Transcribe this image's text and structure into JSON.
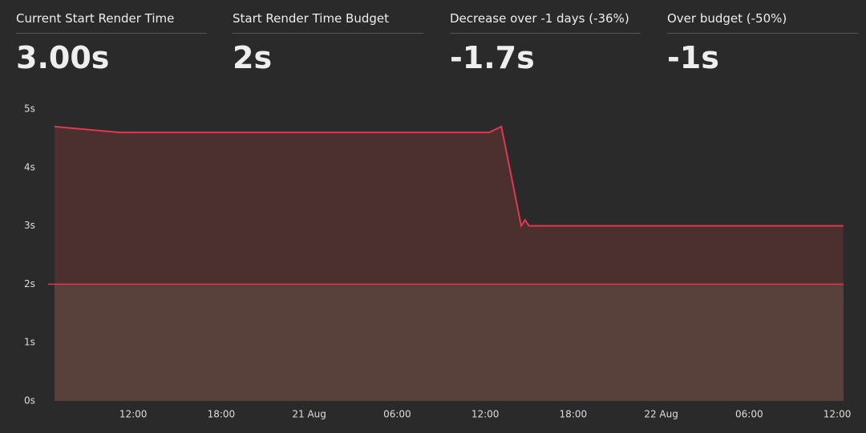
{
  "stats": [
    {
      "label": "Current Start Render Time",
      "value": "3.00s"
    },
    {
      "label": "Start Render Time Budget",
      "value": "2s"
    },
    {
      "label": "Decrease over -1 days (-36%)",
      "value": "-1.7s"
    },
    {
      "label": "Over budget (-50%)",
      "value": "-1s"
    }
  ],
  "chart_data": {
    "type": "area",
    "x": [
      "20 Aug 06:38",
      "20 Aug 11:05",
      "21 Aug 12:17",
      "21 Aug 13:06",
      "21 Aug 13:54",
      "21 Aug 14:27",
      "21 Aug 14:43",
      "21 Aug 14:59",
      "22 Aug 12:25"
    ],
    "series": [
      {
        "color": "#e0394f",
        "values": [
          4.7,
          4.6,
          4.6,
          4.7,
          3.7,
          3.0,
          3.1,
          3.0,
          3.0
        ]
      }
    ],
    "budget": 2,
    "budget_color": "#e0394f",
    "xlim": [
      "20 Aug 06:38",
      "22 Aug 12:26"
    ],
    "xticks": [
      {
        "value": "20 Aug 12:00",
        "label": "12:00"
      },
      {
        "value": "20 Aug 18:00",
        "label": "18:00"
      },
      {
        "value": "21 Aug 00:00",
        "label": "21 Aug"
      },
      {
        "value": "21 Aug 06:00",
        "label": "06:00"
      },
      {
        "value": "21 Aug 12:00",
        "label": "12:00"
      },
      {
        "value": "21 Aug 18:00",
        "label": "18:00"
      },
      {
        "value": "22 Aug 00:00",
        "label": "22 Aug"
      },
      {
        "value": "22 Aug 06:00",
        "label": "06:00"
      },
      {
        "value": "22 Aug 12:00",
        "label": "12:00"
      }
    ],
    "ylim": [
      0,
      5
    ],
    "yticks": [
      {
        "value": 0,
        "label": "0s"
      },
      {
        "value": 1,
        "label": "1s"
      },
      {
        "value": 2,
        "label": "2s"
      },
      {
        "value": 3,
        "label": "3s"
      },
      {
        "value": 4,
        "label": "4s"
      },
      {
        "value": 5,
        "label": "5s"
      }
    ]
  }
}
